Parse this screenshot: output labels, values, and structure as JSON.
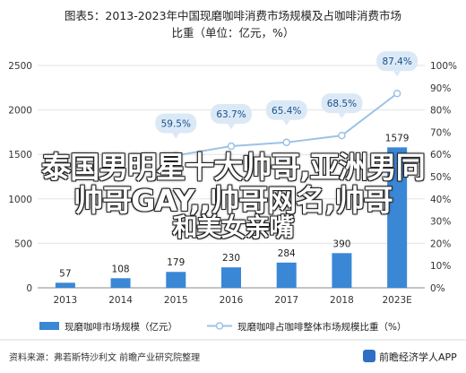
{
  "chart_data": {
    "type": "bar+line",
    "title_line1": "图表5：2013-2023年中国现磨咖啡消费市场规模及占咖啡消费市场",
    "title_line2": "比重（单位：亿元，%）",
    "categories": [
      "2013",
      "2014",
      "2015",
      "2016",
      "2017",
      "2018",
      "2023E"
    ],
    "series": [
      {
        "name": "现磨咖啡市场规模（亿元）",
        "kind": "bar",
        "color": "#3a87d6",
        "values": [
          57,
          108,
          179,
          230,
          284,
          390,
          1579
        ]
      },
      {
        "name": "现磨咖啡占咖啡整体市场规模比重（%）",
        "kind": "line",
        "color": "#9cc2e6",
        "values": [
          null,
          null,
          59.5,
          63.7,
          65.4,
          68.5,
          87.4
        ]
      }
    ],
    "line_labels": [
      "59.5%",
      "63.7%",
      "65.4%",
      "68.5%",
      "87.4%"
    ],
    "y_left": {
      "min": 0,
      "max": 2500,
      "ticks": [
        "0",
        "500",
        "1000",
        "1500",
        "2000",
        "2500"
      ]
    },
    "y_right": {
      "min": 0,
      "max": 100,
      "ticks": [
        "0%",
        "10%",
        "20%",
        "30%",
        "40%",
        "50%",
        "60%",
        "70%",
        "80%",
        "90%",
        "100%"
      ]
    }
  },
  "footer": {
    "source": "资料来源：弗若斯特沙利文 前瞻产业研究院整理",
    "brand": "前瞻经济学人APP"
  },
  "overlay": {
    "line1": "泰国男明星十大帅哥,亚洲男同",
    "line2": "帅哥GAY,,帅哥网名,帅哥",
    "line3": "和美女亲嘴"
  }
}
